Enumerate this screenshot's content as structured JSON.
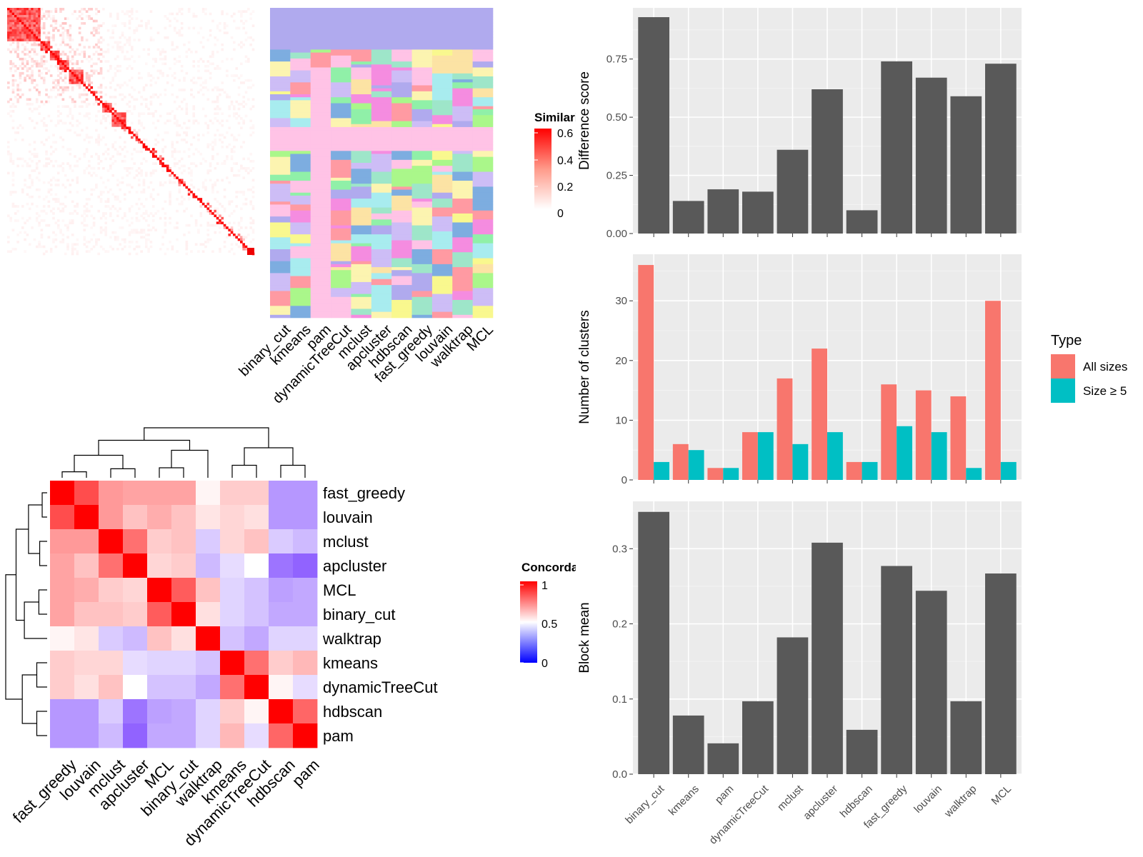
{
  "chart_data": [
    {
      "type": "heatmap",
      "id": "similarity",
      "legend_title": "Similarity",
      "legend_ticks": [
        "0.6",
        "0.4",
        "0.2",
        "0"
      ],
      "colors": {
        "low": "#ffffff",
        "high": "#ff0000"
      },
      "n_terms": 104
    },
    {
      "type": "table",
      "id": "cluster-assignments",
      "methods": [
        "binary_cut",
        "kmeans",
        "pam",
        "dynamicTreeCut",
        "mclust",
        "apcluster",
        "hdbscan",
        "fast_greedy",
        "louvain",
        "walktrap",
        "MCL"
      ]
    },
    {
      "type": "heatmap",
      "id": "concordance",
      "legend_title": "Concordance",
      "legend_ticks": [
        "1",
        "0.5",
        "0"
      ],
      "colors": {
        "low": "#0000ff",
        "mid": "#ffffff",
        "high": "#ff0000"
      },
      "rows": [
        "fast_greedy",
        "louvain",
        "mclust",
        "apcluster",
        "MCL",
        "binary_cut",
        "walktrap",
        "kmeans",
        "dynamicTreeCut",
        "hdbscan",
        "pam"
      ],
      "cols": [
        "fast_greedy",
        "louvain",
        "mclust",
        "apcluster",
        "MCL",
        "binary_cut",
        "walktrap",
        "kmeans",
        "dynamicTreeCut",
        "hdbscan",
        "pam"
      ],
      "values": [
        [
          1.0,
          0.85,
          0.7,
          0.68,
          0.68,
          0.68,
          0.52,
          0.6,
          0.6,
          0.26,
          0.26
        ],
        [
          0.85,
          1.0,
          0.7,
          0.62,
          0.66,
          0.62,
          0.55,
          0.58,
          0.56,
          0.26,
          0.26
        ],
        [
          0.7,
          0.7,
          1.0,
          0.78,
          0.6,
          0.62,
          0.38,
          0.58,
          0.62,
          0.38,
          0.34
        ],
        [
          0.68,
          0.62,
          0.78,
          1.0,
          0.58,
          0.6,
          0.34,
          0.42,
          0.5,
          0.18,
          0.14
        ],
        [
          0.68,
          0.66,
          0.6,
          0.58,
          1.0,
          0.82,
          0.62,
          0.4,
          0.36,
          0.28,
          0.3
        ],
        [
          0.68,
          0.62,
          0.62,
          0.6,
          0.82,
          1.0,
          0.56,
          0.4,
          0.36,
          0.3,
          0.3
        ],
        [
          0.52,
          0.55,
          0.38,
          0.34,
          0.62,
          0.56,
          1.0,
          0.36,
          0.3,
          0.4,
          0.4
        ],
        [
          0.6,
          0.58,
          0.58,
          0.42,
          0.4,
          0.4,
          0.36,
          1.0,
          0.78,
          0.6,
          0.64
        ],
        [
          0.6,
          0.56,
          0.62,
          0.5,
          0.36,
          0.36,
          0.3,
          0.78,
          1.0,
          0.52,
          0.42
        ],
        [
          0.26,
          0.26,
          0.38,
          0.18,
          0.28,
          0.3,
          0.4,
          0.6,
          0.52,
          1.0,
          0.8
        ],
        [
          0.26,
          0.26,
          0.34,
          0.14,
          0.3,
          0.3,
          0.4,
          0.64,
          0.42,
          0.8,
          1.0
        ]
      ]
    },
    {
      "type": "bar",
      "id": "difference",
      "categories": [
        "binary_cut",
        "kmeans",
        "pam",
        "dynamicTreeCut",
        "mclust",
        "apcluster",
        "hdbscan",
        "fast_greedy",
        "louvain",
        "walktrap",
        "MCL"
      ],
      "values": [
        0.93,
        0.14,
        0.19,
        0.18,
        0.36,
        0.62,
        0.1,
        0.74,
        0.67,
        0.59,
        0.73
      ],
      "ylabel": "Difference score",
      "ylim": [
        0,
        0.97
      ],
      "yticks": [
        0,
        0.25,
        0.5,
        0.75
      ],
      "yticklabels": [
        "0.00",
        "0.25",
        "0.50",
        "0.75"
      ],
      "grid": true
    },
    {
      "type": "bar",
      "id": "num-clusters",
      "categories": [
        "binary_cut",
        "kmeans",
        "pam",
        "dynamicTreeCut",
        "mclust",
        "apcluster",
        "hdbscan",
        "fast_greedy",
        "louvain",
        "walktrap",
        "MCL"
      ],
      "series": [
        {
          "name": "All sizes",
          "color": "#f8766d",
          "values": [
            36,
            6,
            2,
            8,
            17,
            22,
            3,
            16,
            15,
            14,
            30
          ]
        },
        {
          "name": "Size ≥ 5",
          "color": "#00bfc4",
          "values": [
            3,
            5,
            2,
            8,
            6,
            8,
            3,
            9,
            8,
            2,
            3
          ]
        }
      ],
      "ylabel": "Number of clusters",
      "ylim": [
        0,
        37.8
      ],
      "yticks": [
        0,
        10,
        20,
        30
      ],
      "yticklabels": [
        "0",
        "10",
        "20",
        "30"
      ],
      "legend_title": "Type",
      "legend_position": "right",
      "grid": true
    },
    {
      "type": "bar",
      "id": "block-mean",
      "categories": [
        "binary_cut",
        "kmeans",
        "pam",
        "dynamicTreeCut",
        "mclust",
        "apcluster",
        "hdbscan",
        "fast_greedy",
        "louvain",
        "walktrap",
        "MCL"
      ],
      "values": [
        0.349,
        0.078,
        0.041,
        0.097,
        0.182,
        0.308,
        0.059,
        0.277,
        0.244,
        0.097,
        0.267
      ],
      "ylabel": "Block mean",
      "ylim": [
        0,
        0.363
      ],
      "yticks": [
        0,
        0.1,
        0.2,
        0.3
      ],
      "yticklabels": [
        "0.0",
        "0.1",
        "0.2",
        "0.3"
      ],
      "grid": true
    }
  ]
}
